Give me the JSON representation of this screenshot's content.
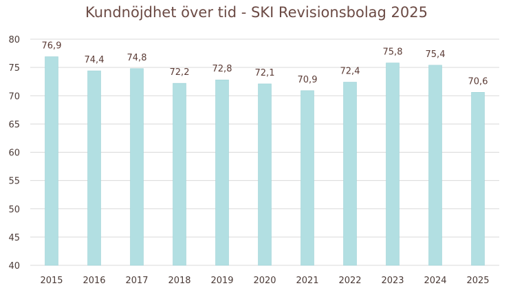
{
  "chart_data": {
    "type": "bar",
    "title": "Kundnöjdhet över tid - SKI Revisionsbolag 2025",
    "xlabel": "",
    "ylabel": "",
    "categories": [
      "2015",
      "2016",
      "2017",
      "2018",
      "2019",
      "2020",
      "2021",
      "2022",
      "2023",
      "2024",
      "2025"
    ],
    "values": [
      76.9,
      74.4,
      74.8,
      72.2,
      72.8,
      72.1,
      70.9,
      72.4,
      75.8,
      75.4,
      70.6
    ],
    "data_labels": [
      "76,9",
      "74,4",
      "74,8",
      "72,2",
      "72,8",
      "72,1",
      "70,9",
      "72,4",
      "75,8",
      "75,4",
      "70,6"
    ],
    "ylim": [
      40,
      80
    ],
    "yticks": [
      40,
      45,
      50,
      55,
      60,
      65,
      70,
      75,
      80
    ],
    "grid": true,
    "legend": "none",
    "colors": {
      "bar": "#b2dfe2",
      "bar_edge": "#9fd3d7",
      "grid": "#d9d9d9",
      "title": "#6b4a44",
      "text": "#4a3a36"
    }
  }
}
